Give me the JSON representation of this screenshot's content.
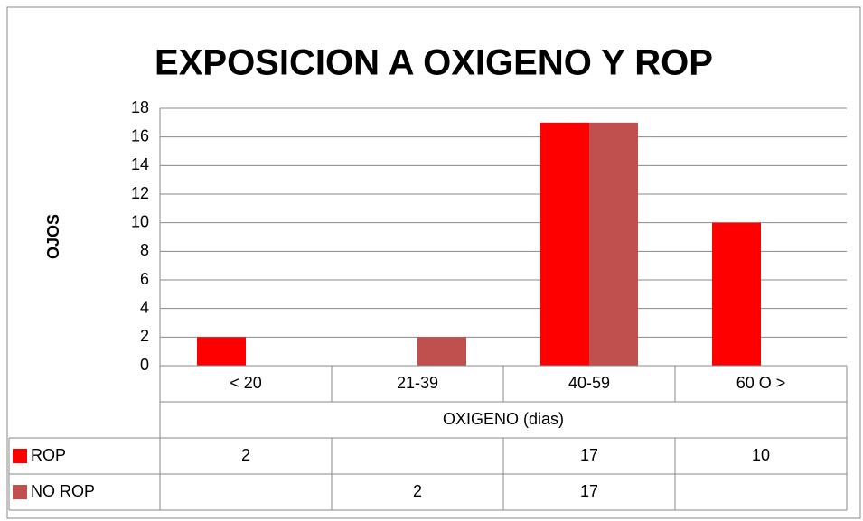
{
  "chart_data": {
    "type": "bar",
    "title": "EXPOSICION A OXIGENO Y ROP",
    "y_label": "OJOS",
    "x_label": "OXIGENO (dias)",
    "categories": [
      "< 20",
      "21-39",
      "40-59",
      "60 O >"
    ],
    "series": [
      {
        "name": "ROP",
        "color": "#ff0000",
        "values": [
          2,
          null,
          17,
          10
        ]
      },
      {
        "name": "NO ROP",
        "color": "#c0504d",
        "values": [
          null,
          2,
          17,
          null
        ]
      }
    ],
    "ylim": [
      0,
      18
    ],
    "yticks": [
      0,
      2,
      4,
      6,
      8,
      10,
      12,
      14,
      16,
      18
    ],
    "grid": true
  }
}
